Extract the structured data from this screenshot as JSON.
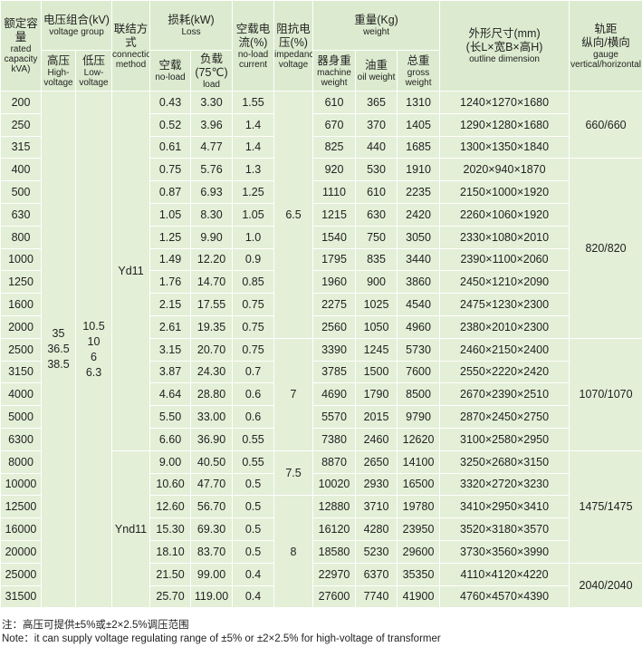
{
  "header": {
    "capacity": {
      "zh": "额定容量",
      "en": "rated capacity kVA)"
    },
    "voltage": {
      "zh": "电压组合(kV)",
      "en": "voltage group"
    },
    "high": {
      "zh": "高压",
      "en": "High-voltage"
    },
    "low": {
      "zh": "低压",
      "en": "Low-voltage"
    },
    "connection": {
      "zh": "联结方式",
      "en": "connection method"
    },
    "loss": {
      "zh": "损耗(kW)",
      "en": "Loss"
    },
    "no_load": {
      "zh": "空载",
      "en": "no-load"
    },
    "load": {
      "zh": "负载(75℃)",
      "en": "load"
    },
    "current": {
      "zh": "空载电流(%)",
      "en": "no-load current"
    },
    "impedance": {
      "zh": "阻抗电压(%)",
      "en": "impedance voltage"
    },
    "weight": {
      "zh": "重量(Kg)",
      "en": "weight"
    },
    "machine": {
      "zh": "器身重",
      "en": "machine weight"
    },
    "oil": {
      "zh": "油重",
      "en": "oil weight"
    },
    "gross": {
      "zh": "总重",
      "en": "gross weight"
    },
    "dimension": {
      "zh": "外形尺寸(mm)",
      "zh2": "(长L×宽B×高H)",
      "en": "outline dimension"
    },
    "gauge": {
      "zh": "轨距",
      "zh2": "纵向/横向",
      "en": "gauge vertical/horizontal"
    }
  },
  "rows": [
    [
      "200",
      "0.43",
      "3.30",
      "1.55",
      "610",
      "365",
      "1310",
      "1240×1270×1680"
    ],
    [
      "250",
      "0.52",
      "3.96",
      "1.4",
      "670",
      "370",
      "1405",
      "1290×1280×1680"
    ],
    [
      "315",
      "0.61",
      "4.77",
      "1.4",
      "825",
      "440",
      "1685",
      "1300×1350×1840"
    ],
    [
      "400",
      "0.75",
      "5.76",
      "1.3",
      "920",
      "530",
      "1910",
      "2020×940×1870"
    ],
    [
      "500",
      "0.87",
      "6.93",
      "1.25",
      "1110",
      "610",
      "2235",
      "2150×1000×1920"
    ],
    [
      "630",
      "1.05",
      "8.30",
      "1.05",
      "1215",
      "630",
      "2420",
      "2260×1060×1920"
    ],
    [
      "800",
      "1.25",
      "9.90",
      "1.0",
      "1540",
      "750",
      "3050",
      "2330×1080×2010"
    ],
    [
      "1000",
      "1.49",
      "12.20",
      "0.9",
      "1795",
      "835",
      "3440",
      "2390×1100×2060"
    ],
    [
      "1250",
      "1.76",
      "14.70",
      "0.85",
      "1960",
      "900",
      "3860",
      "2450×1210×2090"
    ],
    [
      "1600",
      "2.15",
      "17.55",
      "0.75",
      "2275",
      "1025",
      "4540",
      "2475×1230×2300"
    ],
    [
      "2000",
      "2.61",
      "19.35",
      "0.75",
      "2560",
      "1050",
      "4960",
      "2380×2010×2300"
    ],
    [
      "2500",
      "3.15",
      "20.70",
      "0.75",
      "3390",
      "1245",
      "5730",
      "2460×2150×2400"
    ],
    [
      "3150",
      "3.87",
      "24.30",
      "0.7",
      "3785",
      "1500",
      "7600",
      "2550×2220×2420"
    ],
    [
      "4000",
      "4.64",
      "28.80",
      "0.6",
      "4690",
      "1790",
      "8500",
      "2670×2390×2510"
    ],
    [
      "5000",
      "5.50",
      "33.00",
      "0.6",
      "5570",
      "2015",
      "9790",
      "2870×2450×2750"
    ],
    [
      "6300",
      "6.60",
      "36.90",
      "0.55",
      "7380",
      "2460",
      "12620",
      "3100×2580×2950"
    ],
    [
      "8000",
      "9.00",
      "40.50",
      "0.55",
      "8870",
      "2650",
      "14100",
      "3250×2680×3150"
    ],
    [
      "10000",
      "10.60",
      "47.70",
      "0.5",
      "10020",
      "2930",
      "16500",
      "3320×2720×3230"
    ],
    [
      "12500",
      "12.60",
      "56.70",
      "0.5",
      "12880",
      "3710",
      "19780",
      "3410×2950×3410"
    ],
    [
      "16000",
      "15.30",
      "69.30",
      "0.5",
      "16120",
      "4280",
      "23950",
      "3520×3180×3570"
    ],
    [
      "20000",
      "18.10",
      "83.70",
      "0.5",
      "18580",
      "5230",
      "29600",
      "3730×3560×3990"
    ],
    [
      "25000",
      "21.50",
      "99.00",
      "0.4",
      "22970",
      "6370",
      "35350",
      "4110×4120×4220"
    ],
    [
      "31500",
      "25.70",
      "119.00",
      "0.4",
      "27600",
      "7740",
      "41900",
      "4760×4570×4390"
    ]
  ],
  "high_voltage": [
    "35",
    "36.5",
    "38.5"
  ],
  "low_voltage": [
    "10.5",
    "10",
    "6",
    "6.3"
  ],
  "connection": [
    "Yd11",
    "Ynd11"
  ],
  "impedance": [
    "6.5",
    "7",
    "7.5",
    "8"
  ],
  "gauge": [
    "660/660",
    "820/820",
    "1070/1070",
    "1475/1475",
    "2040/2040"
  ],
  "notes": [
    "注：高压可提供±5%或±2×2.5%调压范围",
    "Note：it can supply voltage regulating range of ±5% or ±2×2.5% for high-voltage of transformer"
  ]
}
